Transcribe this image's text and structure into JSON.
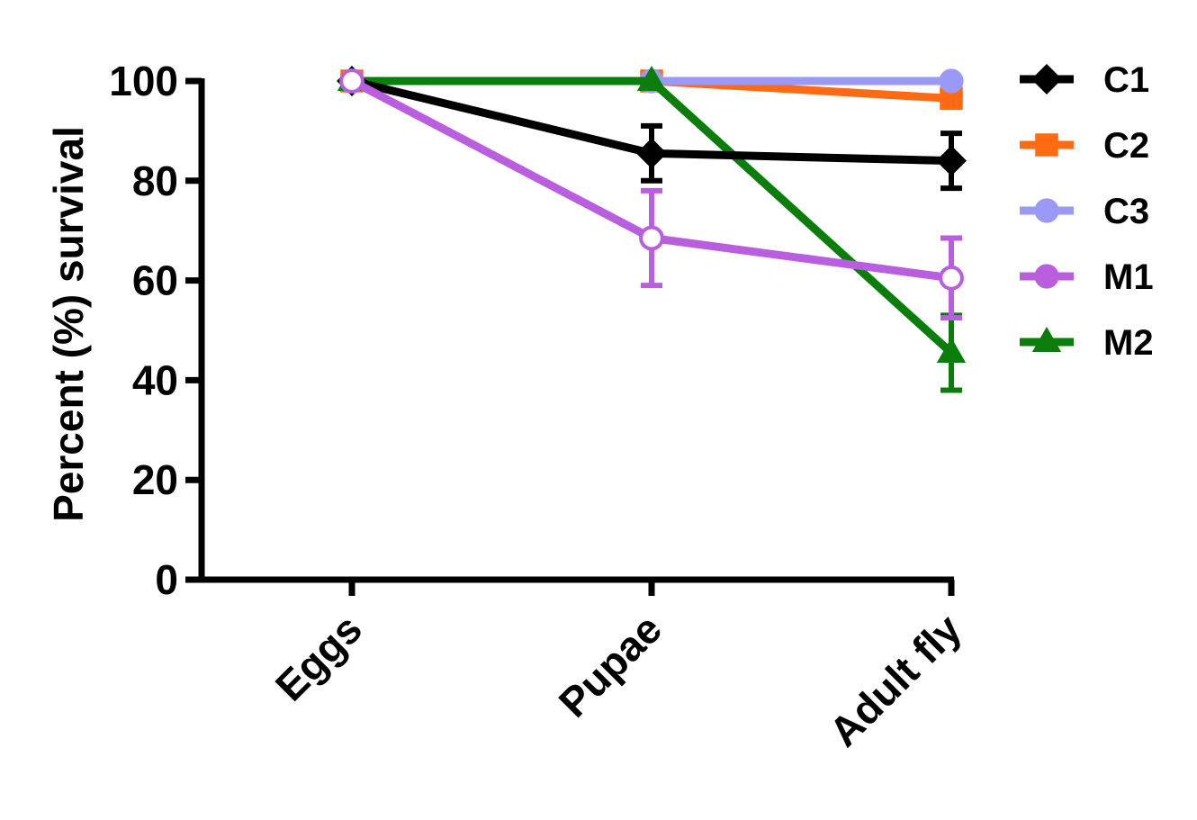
{
  "chart_data": {
    "type": "line",
    "categories": [
      "Eggs",
      "Pupae",
      "Adult fly"
    ],
    "ylabel": "Percent (%) survival",
    "xlabel": "",
    "ylim": [
      0,
      100
    ],
    "yticks": [
      0,
      20,
      40,
      60,
      80,
      100
    ],
    "grid": false,
    "legend_position": "right",
    "series": [
      {
        "name": "C1",
        "color": "#000000",
        "marker": "diamond",
        "values": [
          100,
          85.5,
          84
        ],
        "errors": [
          0,
          5.5,
          5.5
        ]
      },
      {
        "name": "C2",
        "color": "#ff6a13",
        "marker": "square",
        "values": [
          100,
          100,
          96.5
        ],
        "errors": [
          0,
          0,
          0
        ]
      },
      {
        "name": "C3",
        "color": "#9a99f5",
        "marker": "circle",
        "values": [
          100,
          100,
          100
        ],
        "errors": [
          0,
          0,
          0
        ]
      },
      {
        "name": "M1",
        "color": "#b95ede",
        "marker": "circle-open",
        "values": [
          100,
          68.5,
          60.5
        ],
        "errors": [
          0,
          9.5,
          8
        ]
      },
      {
        "name": "M2",
        "color": "#0a7d0a",
        "marker": "triangle",
        "values": [
          100,
          100,
          45.5
        ],
        "errors": [
          0,
          0,
          7.5
        ]
      }
    ]
  }
}
